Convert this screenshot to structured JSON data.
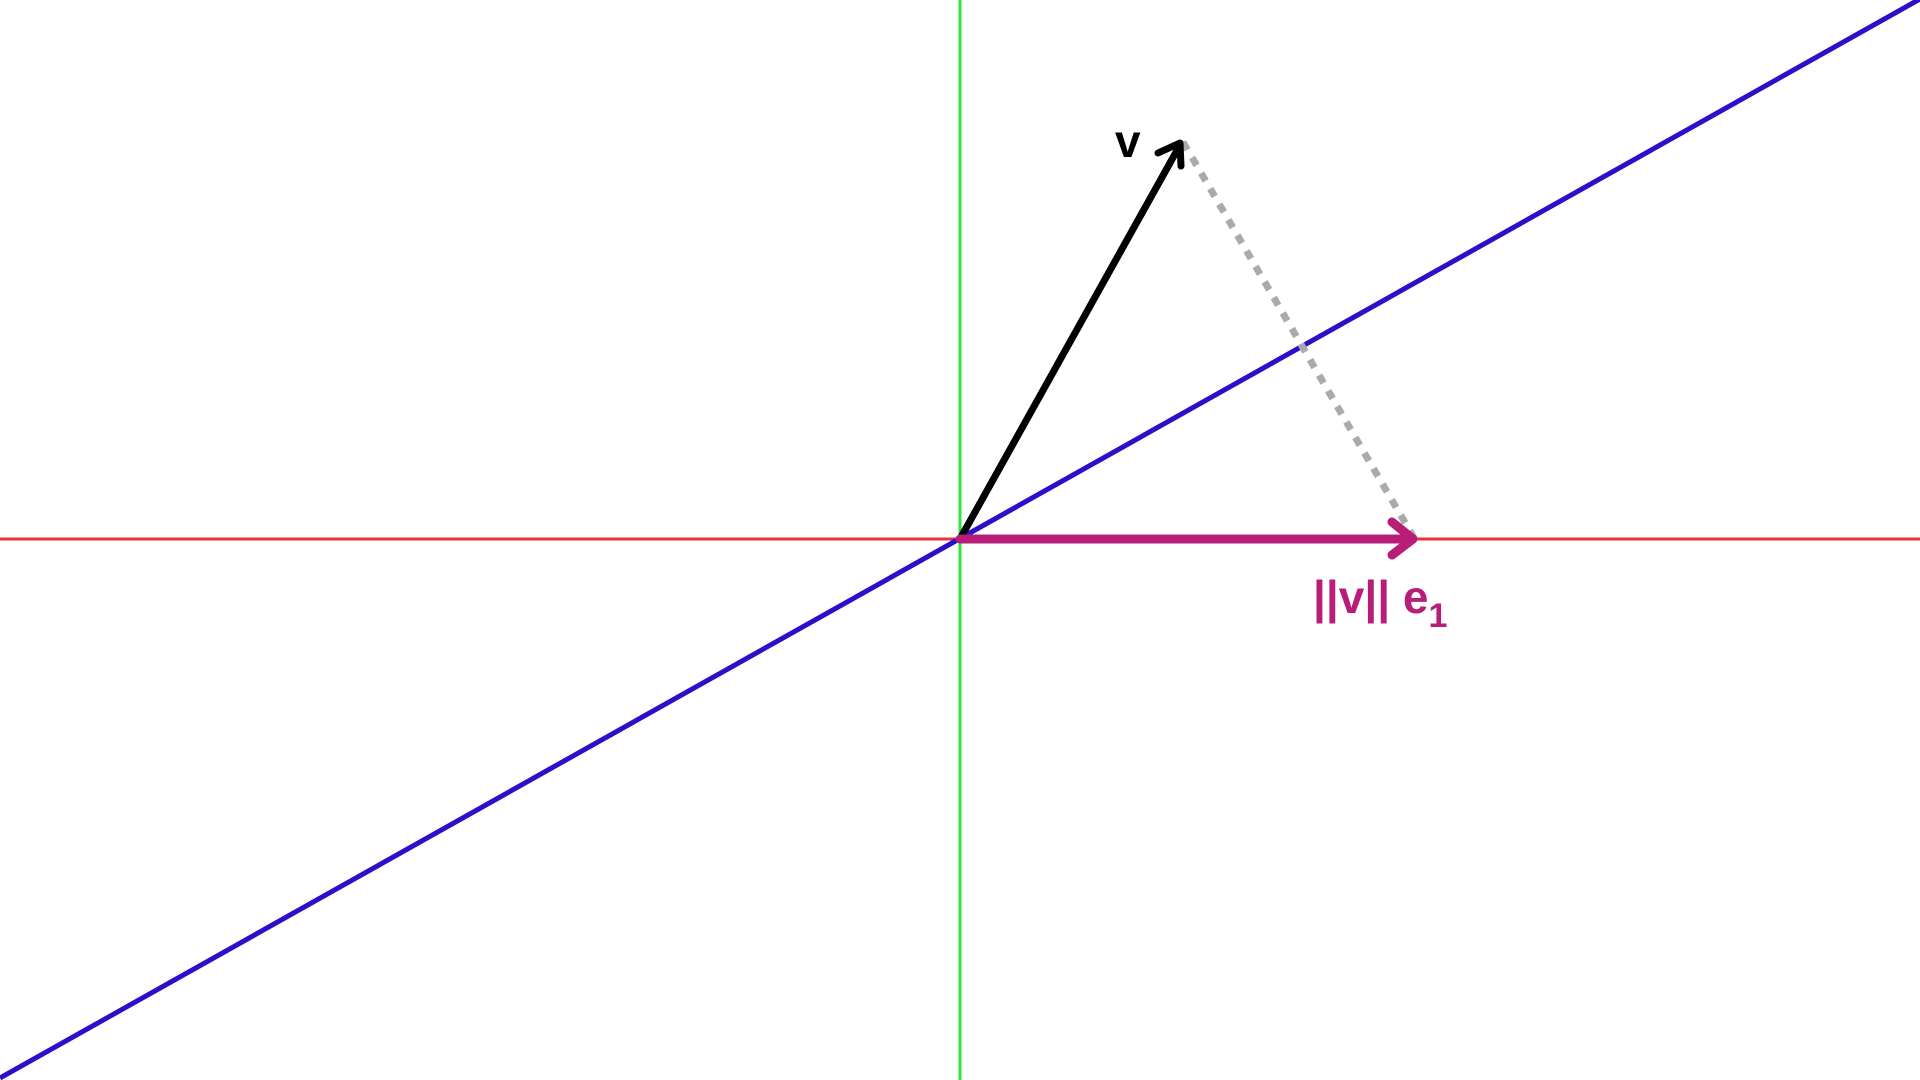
{
  "labels": {
    "vector_v": "v",
    "projection_text": "||v|| e",
    "projection_subscript": "1"
  },
  "colors": {
    "background": "#ffffff",
    "x_axis": "#e8333c",
    "y_axis": "#33e23a",
    "reflection_line": "#2a10c8",
    "vector_v": "#000000",
    "projection_vector": "#b81e78",
    "dotted_connector": "#aaaaaa"
  }
}
